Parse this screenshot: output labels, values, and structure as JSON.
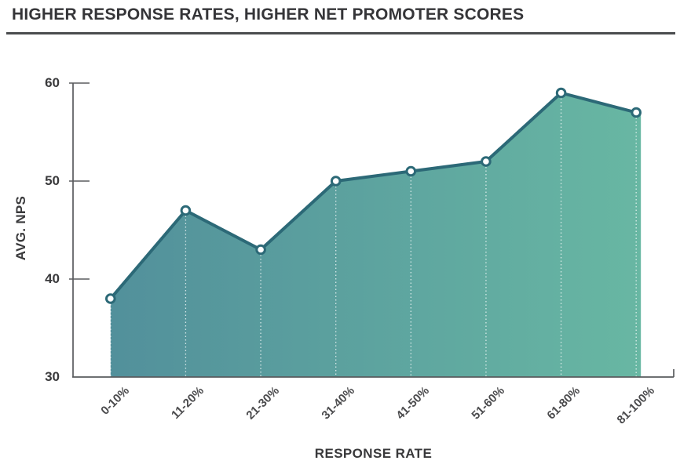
{
  "header": {
    "title": "HIGHER RESPONSE RATES, HIGHER NET PROMOTER SCORES"
  },
  "chart_data": {
    "type": "area",
    "title": "HIGHER RESPONSE RATES, HIGHER NET PROMOTER SCORES",
    "categories": [
      "0-10%",
      "11-20%",
      "21-30%",
      "31-40%",
      "41-50%",
      "51-60%",
      "61-80%",
      "81-100%"
    ],
    "values": [
      38,
      47,
      43,
      50,
      51,
      52,
      59,
      57
    ],
    "xlabel": "RESPONSE RATE",
    "ylabel": "AVG. NPS",
    "ylim": [
      30,
      60
    ],
    "yticks": [
      30,
      40,
      50,
      60
    ],
    "grid": false,
    "legend": "none",
    "marker": "open-circle",
    "drop_lines": "white-dotted-vertical",
    "colors": {
      "line": "#2C6977",
      "fill_left": "#52909B",
      "fill_right": "#68B7A3",
      "marker_fill": "#FFFFFF",
      "drop_line": "#FFFFFF",
      "axis": "#5A5B5E",
      "title_text": "#353538",
      "tick_text": "#4B4B4D"
    }
  }
}
